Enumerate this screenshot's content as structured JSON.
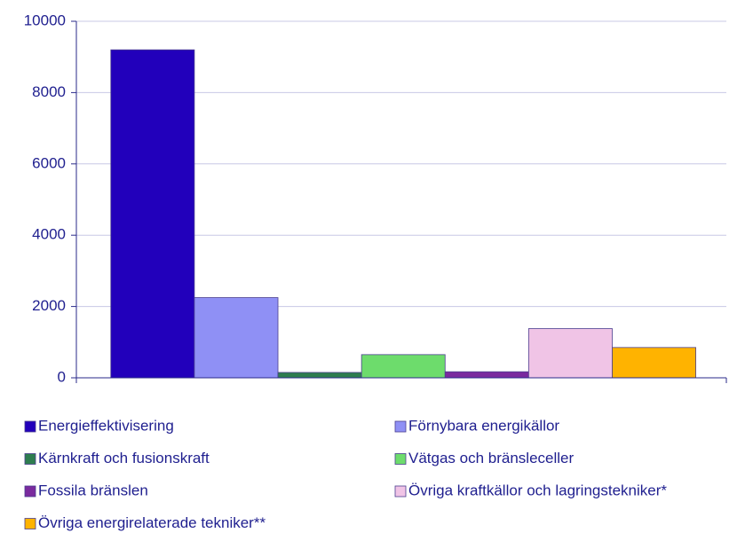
{
  "chart_data": {
    "type": "bar",
    "categories": [
      null
    ],
    "series": [
      {
        "name": "Energieffektivisering",
        "color": "#2200bb",
        "values": [
          9200
        ]
      },
      {
        "name": "Förnybara energikällor",
        "color": "#8f90f5",
        "values": [
          2250
        ]
      },
      {
        "name": "Kärnkraft och fusionskraft",
        "color": "#2e7d4f",
        "values": [
          150
        ]
      },
      {
        "name": "Vätgas och bränsleceller",
        "color": "#6ddc6c",
        "values": [
          650
        ]
      },
      {
        "name": "Fossila bränslen",
        "color": "#7a2a9e",
        "values": [
          170
        ]
      },
      {
        "name": "Övriga kraftkällor och lagringstekniker*",
        "color": "#f0c4e6",
        "values": [
          1380
        ]
      },
      {
        "name": "Övriga energirelaterade tekniker**",
        "color": "#ffb300",
        "values": [
          850
        ]
      }
    ],
    "ylim": [
      0,
      10000
    ],
    "yticks": [
      0,
      2000,
      4000,
      6000,
      8000,
      10000
    ],
    "grid": true
  }
}
